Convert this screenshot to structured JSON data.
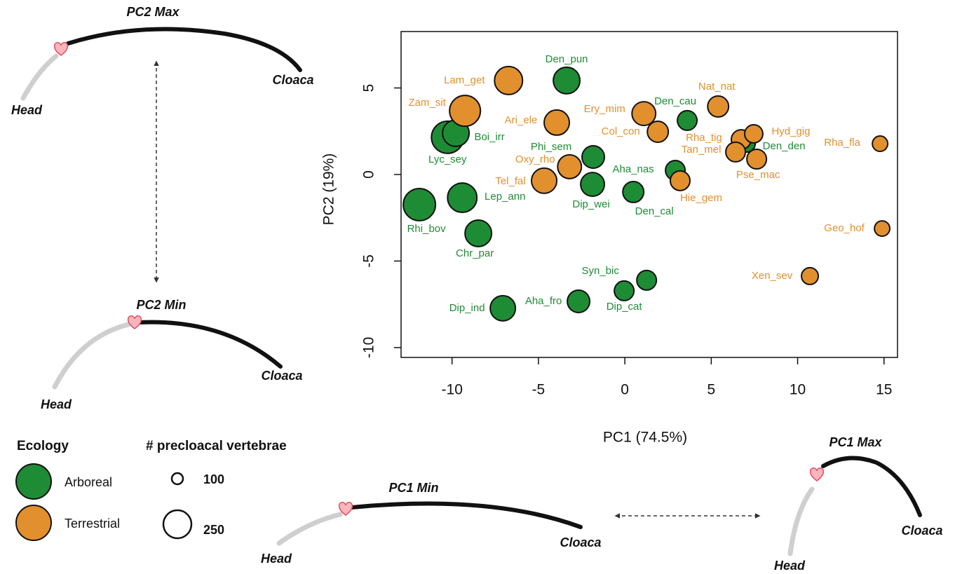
{
  "chart_data": {
    "type": "scatter",
    "xlabel": "PC1 (74.5%)",
    "ylabel": "PC2 (19%)",
    "xlim": [
      -12.95,
      15.78
    ],
    "ylim": [
      -10.57,
      8.26
    ],
    "xticks": [
      -10,
      -5,
      0,
      5,
      10,
      15
    ],
    "yticks": [
      -10,
      -5,
      0,
      5
    ],
    "legend_title": "Ecology",
    "size_legend": {
      "title": "# precloacal vertebrae",
      "values": [
        100,
        250
      ]
    },
    "series": [
      {
        "name": "Arboreal",
        "color": "#1e8c35",
        "labels": [
          "Den_pun",
          "Lyc_sey",
          "Boi_irr",
          "Den_cau",
          "Phi_sem",
          "Aha_nas",
          "Den_den",
          "Dip_wei",
          "Den_cal",
          "Rhi_bov",
          "Lep_ann",
          "Chr_par",
          "Syn_bic",
          "Dip_cat",
          "Aha_fro",
          "Dip_ind"
        ],
        "x": [
          -3.37,
          -10.26,
          -9.78,
          3.61,
          -1.83,
          2.92,
          7.06,
          -1.87,
          0.49,
          -11.89,
          -9.41,
          -8.48,
          1.26,
          -0.04,
          -2.68,
          -7.06
        ],
        "y": [
          5.43,
          2.15,
          2.39,
          3.12,
          1.01,
          0.24,
          1.78,
          -0.57,
          -1.01,
          -1.74,
          -1.34,
          -3.4,
          -6.11,
          -6.72,
          -7.33,
          -7.73
        ],
        "sizes": [
          237,
          287,
          237,
          175,
          200,
          175,
          150,
          212,
          187,
          287,
          262,
          237,
          175,
          175,
          200,
          225
        ]
      },
      {
        "name": "Terrestrial",
        "color": "#e2902e",
        "labels": [
          "Lam_get",
          "Zam_sit",
          "Ari_ele",
          "Ery_mim",
          "Col_con",
          "Nat_nat",
          "Rha_tig",
          "Hyd_gig",
          "Tan_mel",
          "Pse_mac",
          "Rha_fla",
          "Oxy_rho",
          "Tel_fal",
          "Hie_gem",
          "Geo_hof",
          "Xen_sev"
        ],
        "x": [
          -6.73,
          -9.25,
          -3.94,
          1.1,
          1.91,
          5.4,
          6.73,
          7.46,
          6.41,
          7.63,
          14.77,
          -3.2,
          -4.67,
          3.2,
          14.89,
          10.71
        ],
        "y": [
          5.43,
          3.68,
          3.0,
          3.52,
          2.47,
          3.93,
          2.02,
          2.35,
          1.3,
          0.89,
          1.78,
          0.45,
          -0.36,
          -0.36,
          -3.12,
          -5.87
        ],
        "sizes": [
          250,
          275,
          225,
          212,
          187,
          187,
          175,
          162,
          175,
          175,
          137,
          212,
          225,
          175,
          137,
          150
        ]
      }
    ]
  },
  "diagrams": [
    {
      "title": "PC2 Max",
      "head": "Head",
      "tail": "Cloaca"
    },
    {
      "title": "PC2 Min",
      "head": "Head",
      "tail": "Cloaca"
    },
    {
      "title": "PC1 Min",
      "head": "Head",
      "tail": "Cloaca"
    },
    {
      "title": "PC1 Max",
      "head": "Head",
      "tail": "Cloaca"
    }
  ]
}
